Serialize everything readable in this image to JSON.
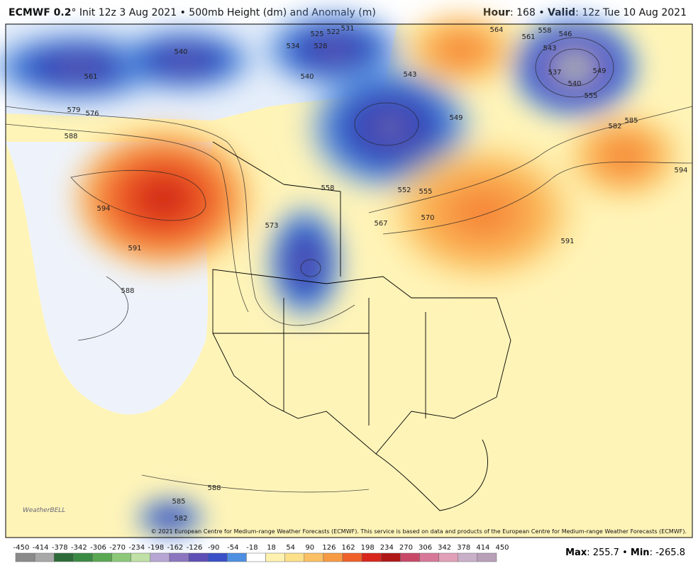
{
  "header": {
    "model": "ECMWF 0.2",
    "degree": "°",
    "init": "Init 12z 3 Aug 2021",
    "sep": "•",
    "product": "500mb Height (dm) and Anomaly (m)",
    "hour_label": "Hour",
    "hour": 168,
    "valid_label": "Valid",
    "valid": "12z Tue 10 Aug 2021"
  },
  "map": {
    "contour_labels": [
      561,
      540,
      534,
      528,
      525,
      522,
      531,
      540,
      543,
      579,
      576,
      588,
      594,
      591,
      588,
      573,
      558,
      552,
      555,
      567,
      570,
      549,
      561,
      558,
      546,
      543,
      537,
      540,
      549,
      555,
      582,
      585,
      594,
      591,
      588,
      585,
      582,
      564
    ],
    "logo": "WeatherBELL",
    "copyright": "© 2021 European Centre for Medium-range Weather Forecasts (ECMWF). This service is based on data and products of the European Centre for Medium-range Weather Forecasts (ECMWF)."
  },
  "colorbar": {
    "ticks": [
      -450,
      -414,
      -378,
      -342,
      -306,
      -270,
      -234,
      -198,
      -162,
      -126,
      -90,
      -54,
      -18,
      18,
      54,
      90,
      126,
      162,
      198,
      234,
      270,
      306,
      342,
      378,
      414,
      450
    ],
    "colors": [
      "#8a8a8a",
      "#a8a8a8",
      "#2e6b3a",
      "#3a8a44",
      "#5aa852",
      "#8cc878",
      "#bfe0a6",
      "#b7a6d4",
      "#8c76c0",
      "#5e4fb6",
      "#3a50c8",
      "#4d8fe0",
      "#ffffff",
      "#fff2b0",
      "#fde08a",
      "#fbc064",
      "#f79a44",
      "#f0602a",
      "#d8261c",
      "#b01818",
      "#c84868",
      "#d87898",
      "#e0a0b8",
      "#c8b0c8",
      "#b8a0b8"
    ]
  },
  "footer": {
    "max_label": "Max",
    "max": 255.7,
    "min_label": "Min",
    "min": -265.8,
    "sep": "•"
  }
}
